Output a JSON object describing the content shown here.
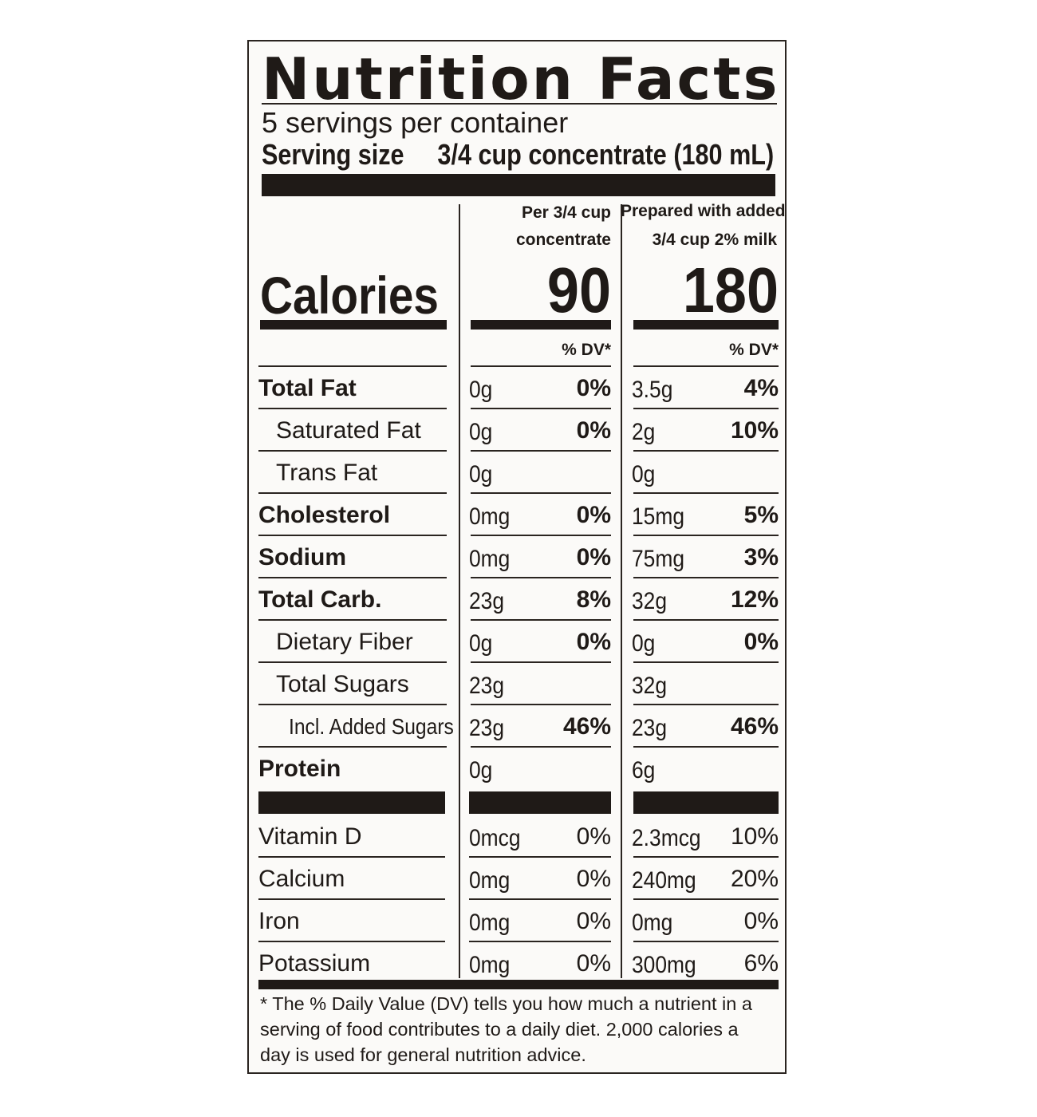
{
  "label": {
    "title": "Nutrition Facts",
    "servings_per_container": "5 servings per container",
    "serving_size_label": "Serving size",
    "serving_size_value": "3/4 cup concentrate (180 mL)"
  },
  "columns": {
    "col1_header_line1": "Per 3/4 cup",
    "col1_header_line2": "concentrate",
    "col2_header_line1": "Prepared with added",
    "col2_header_line2": "3/4 cup 2% milk",
    "dv_header": "% DV*"
  },
  "calories": {
    "label": "Calories",
    "col1": "90",
    "col2": "180"
  },
  "nutrients": [
    {
      "name": "Total Fat",
      "bold": true,
      "indent": 0,
      "col1_amount": "0g",
      "col1_dv": "0%",
      "col2_amount": "3.5g",
      "col2_dv": "4%"
    },
    {
      "name": "Saturated Fat",
      "bold": false,
      "indent": 1,
      "col1_amount": "0g",
      "col1_dv": "0%",
      "col2_amount": "2g",
      "col2_dv": "10%"
    },
    {
      "name": "Trans Fat",
      "bold": false,
      "indent": 1,
      "col1_amount": "0g",
      "col1_dv": "",
      "col2_amount": "0g",
      "col2_dv": ""
    },
    {
      "name": "Cholesterol",
      "bold": true,
      "indent": 0,
      "col1_amount": "0mg",
      "col1_dv": "0%",
      "col2_amount": "15mg",
      "col2_dv": "5%"
    },
    {
      "name": "Sodium",
      "bold": true,
      "indent": 0,
      "col1_amount": "0mg",
      "col1_dv": "0%",
      "col2_amount": "75mg",
      "col2_dv": "3%"
    },
    {
      "name": "Total Carb.",
      "bold": true,
      "indent": 0,
      "col1_amount": "23g",
      "col1_dv": "8%",
      "col2_amount": "32g",
      "col2_dv": "12%"
    },
    {
      "name": "Dietary Fiber",
      "bold": false,
      "indent": 1,
      "col1_amount": "0g",
      "col1_dv": "0%",
      "col2_amount": "0g",
      "col2_dv": "0%"
    },
    {
      "name": "Total Sugars",
      "bold": false,
      "indent": 1,
      "col1_amount": "23g",
      "col1_dv": "",
      "col2_amount": "32g",
      "col2_dv": ""
    },
    {
      "name": "Incl. Added Sugars",
      "bold": false,
      "indent": 2,
      "col1_amount": "23g",
      "col1_dv": "46%",
      "col2_amount": "23g",
      "col2_dv": "46%"
    },
    {
      "name": "Protein",
      "bold": true,
      "indent": 0,
      "col1_amount": "0g",
      "col1_dv": "",
      "col2_amount": "6g",
      "col2_dv": ""
    }
  ],
  "vitamins": [
    {
      "name": "Vitamin D",
      "col1_amount": "0mcg",
      "col1_dv": "0%",
      "col2_amount": "2.3mcg",
      "col2_dv": "10%"
    },
    {
      "name": "Calcium",
      "col1_amount": "0mg",
      "col1_dv": "0%",
      "col2_amount": "240mg",
      "col2_dv": "20%"
    },
    {
      "name": "Iron",
      "col1_amount": "0mg",
      "col1_dv": "0%",
      "col2_amount": "0mg",
      "col2_dv": "0%"
    },
    {
      "name": "Potassium",
      "col1_amount": "0mg",
      "col1_dv": "0%",
      "col2_amount": "300mg",
      "col2_dv": "6%"
    }
  ],
  "footnote": "* The % Daily Value (DV) tells you how much a nutrient in a serving of food contributes to a daily diet. 2,000 calories a day is used for general nutrition advice.",
  "colors": {
    "ink": "#1f1a17",
    "paper": "#fbfaf8"
  }
}
